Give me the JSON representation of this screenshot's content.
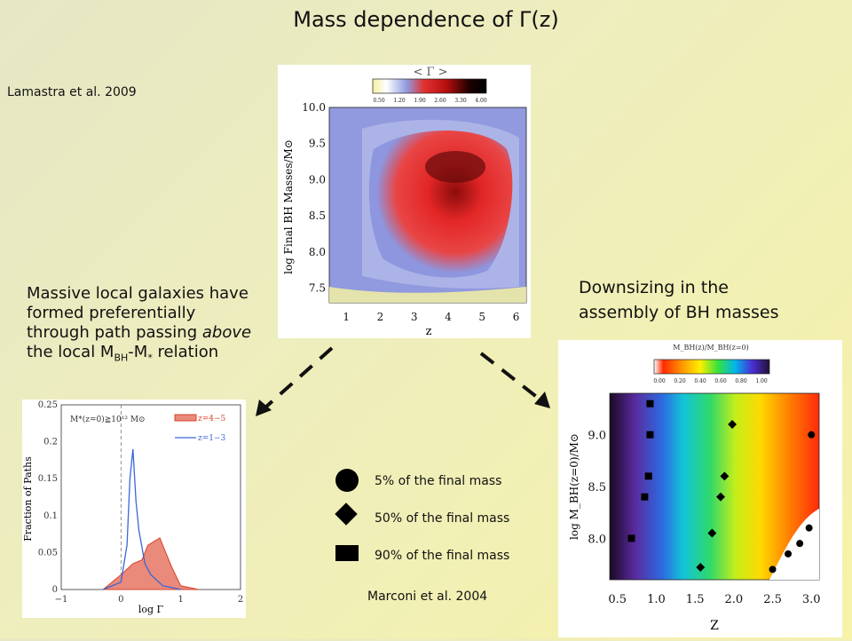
{
  "slide": {
    "title": "Mass dependence of Γ(z)",
    "cite_left": "Lamastra et al. 2009",
    "cite_right": "Marconi et al. 2004",
    "note_left": {
      "l1": "Massive local galaxies have",
      "l2": "formed preferentially",
      "l3_pre": "through path passing ",
      "l3_em": "above",
      "l4_pre": "the local M",
      "l4_sub1": "BH",
      "l4_mid": "-M",
      "l4_sub2": "*",
      "l4_post": " relation"
    },
    "note_right": {
      "l1": "Downsizing in the",
      "l2": "assembly of BH masses"
    },
    "markers": [
      {
        "shape": "circle-icon",
        "label": "5% of the final mass"
      },
      {
        "shape": "diamond-icon",
        "label": "50% of the final mass"
      },
      {
        "shape": "square-icon",
        "label": "90% of the final mass"
      }
    ]
  },
  "colors": {
    "arrow": "#111111",
    "hist_red": "#d9442c",
    "hist_blue": "#3a66d6"
  },
  "figure_top": {
    "colorbar_title": "< Γ >",
    "colorbar_ticks": [
      "0.50",
      "1.20",
      "1.90",
      "2.60",
      "3.30",
      "4.00"
    ],
    "xlabel": "z",
    "ylabel": "log Final BH Masses/M⊙",
    "xticks": [
      "1",
      "2",
      "3",
      "4",
      "5",
      "6"
    ],
    "yticks": [
      "10.0",
      "9.5",
      "9.0",
      "8.5",
      "8.0",
      "7.5"
    ]
  },
  "figure_hist": {
    "ylabel": "Fraction of Paths",
    "xlabel": "log Γ",
    "yticks": [
      "0.25",
      "0.2",
      "0.15",
      "0.1",
      "0.05",
      "0"
    ],
    "xticks": [
      "−1",
      "0",
      "1",
      "2"
    ],
    "condition": "M*(z=0)≧10¹² M⊙",
    "legend": [
      "z=4−5",
      "z=1−3"
    ]
  },
  "figure_map": {
    "colorbar_title": "M_BH(z)/M_BH(z=0)",
    "colorbar_ticks": [
      "0.00",
      "0.20",
      "0.40",
      "0.60",
      "0.80",
      "1.00"
    ],
    "xlabel": "Z",
    "ylabel": "log M_BH(z=0)/M⊙",
    "xticks": [
      "0.5",
      "1.0",
      "1.5",
      "2.0",
      "2.5",
      "3.0"
    ],
    "yticks": [
      "9.0",
      "8.5",
      "8.0"
    ]
  },
  "chart_data": [
    {
      "type": "heatmap",
      "x": [
        1,
        2,
        3,
        4,
        5,
        6
      ],
      "xlabel": "z",
      "ylabel": "log Final BH Masses/M⊙",
      "xlim": [
        0.5,
        6.3
      ],
      "ylim": [
        7.3,
        10.0
      ],
      "colorbar": {
        "label": "< Γ >",
        "range": [
          0.5,
          4.0
        ]
      },
      "features": "high <Γ> (red/black) region around z=2-5, log M 8.2-9.6"
    },
    {
      "type": "area",
      "xlabel": "log Γ",
      "ylabel": "Fraction of Paths",
      "xlim": [
        -1,
        2
      ],
      "ylim": [
        0,
        0.25
      ],
      "series": [
        {
          "name": "z=4−5",
          "x": [
            -0.3,
            0.0,
            0.2,
            0.35,
            0.45,
            0.55,
            0.65,
            0.75,
            0.85,
            1.0,
            1.3
          ],
          "values": [
            0.0,
            0.02,
            0.035,
            0.04,
            0.06,
            0.065,
            0.07,
            0.05,
            0.03,
            0.005,
            0.0
          ]
        },
        {
          "name": "z=1−3",
          "x": [
            -0.3,
            0.0,
            0.1,
            0.15,
            0.2,
            0.25,
            0.3,
            0.4,
            0.5,
            0.7,
            1.0
          ],
          "values": [
            0.0,
            0.01,
            0.06,
            0.15,
            0.19,
            0.12,
            0.08,
            0.035,
            0.02,
            0.005,
            0.0
          ]
        }
      ]
    },
    {
      "type": "scatter",
      "xlabel": "Z",
      "ylabel": "log M_BH(z=0)/M⊙",
      "xlim": [
        0.4,
        3.1
      ],
      "ylim": [
        7.6,
        9.4
      ],
      "series": [
        {
          "name": "5% of the final mass",
          "x": [
            3.0,
            2.97,
            2.85,
            2.7,
            2.5
          ],
          "values": [
            9.0,
            8.1,
            7.95,
            7.85,
            7.7
          ]
        },
        {
          "name": "50% of the final mass",
          "x": [
            1.98,
            1.88,
            1.83,
            1.72,
            1.57
          ],
          "values": [
            9.1,
            8.6,
            8.4,
            8.05,
            7.72
          ]
        },
        {
          "name": "90% of the final mass",
          "x": [
            0.92,
            0.92,
            0.9,
            0.85,
            0.68
          ],
          "values": [
            9.3,
            9.0,
            8.6,
            8.4,
            8.0
          ]
        }
      ]
    }
  ]
}
